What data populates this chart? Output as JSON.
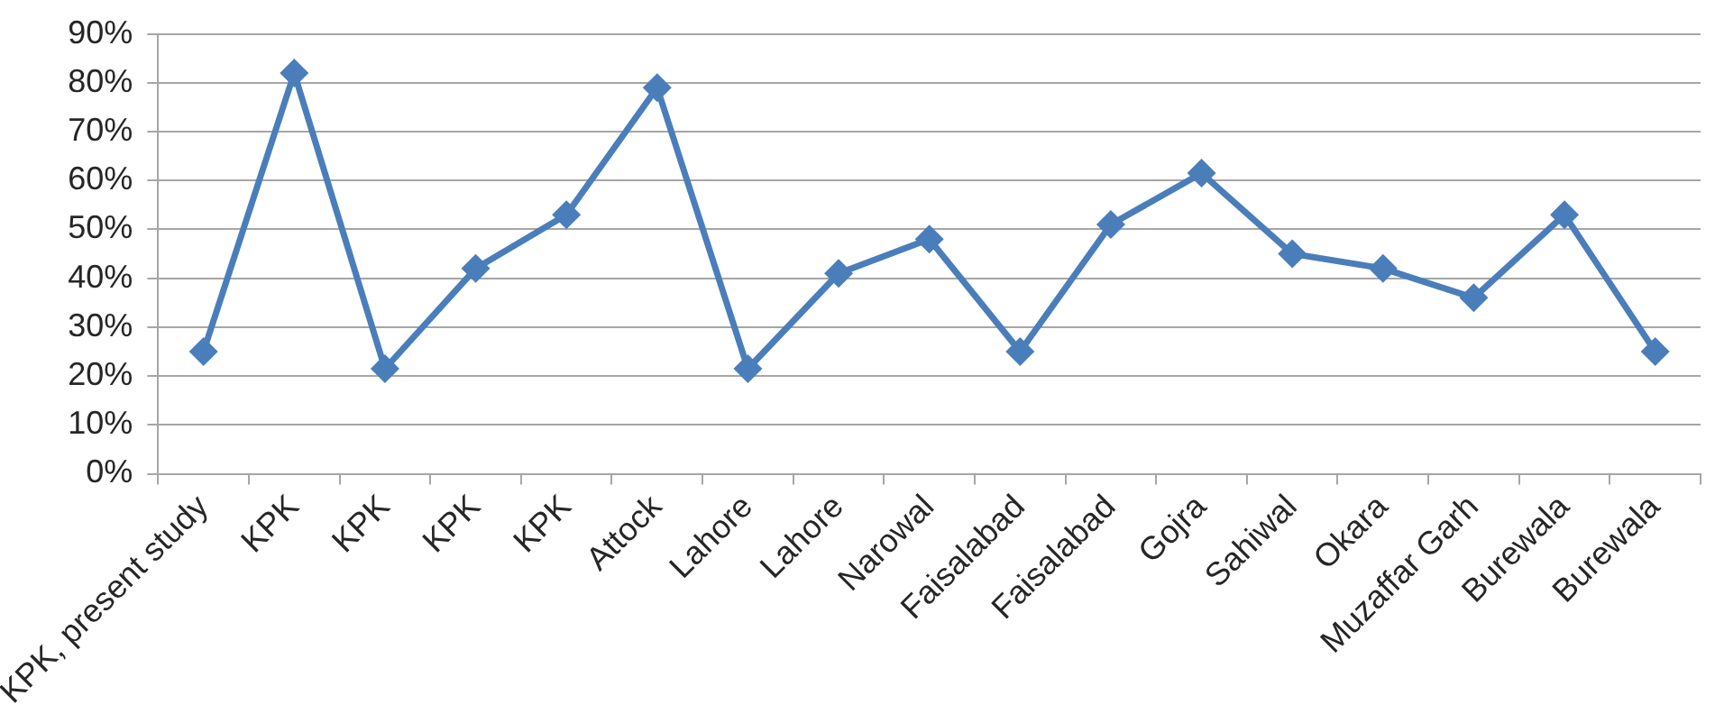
{
  "chart_data": {
    "type": "line",
    "categories": [
      "KPK, present study",
      "KPK",
      "KPK",
      "KPK",
      "KPK",
      "Attock",
      "Lahore",
      "Lahore",
      "Narowal",
      "Faisalabad",
      "Faisalabad",
      "Gojra",
      "Sahiwal",
      "Okara",
      "Muzaffar Garh",
      "Burewala",
      "Burewala"
    ],
    "series": [
      {
        "color": "#4a7ebb",
        "values": [
          25,
          82,
          21.5,
          42,
          53,
          79,
          21.5,
          41,
          48,
          25,
          51,
          61.5,
          45,
          42,
          36,
          53,
          25
        ]
      }
    ],
    "ylim": [
      0,
      90
    ],
    "yticks": [
      {
        "value": 0,
        "label": "0%"
      },
      {
        "value": 10,
        "label": "10%"
      },
      {
        "value": 20,
        "label": "20%"
      },
      {
        "value": 30,
        "label": "30%"
      },
      {
        "value": 40,
        "label": "40%"
      },
      {
        "value": 50,
        "label": "50%"
      },
      {
        "value": 60,
        "label": "60%"
      },
      {
        "value": 70,
        "label": "70%"
      },
      {
        "value": 80,
        "label": "80%"
      },
      {
        "value": 90,
        "label": "90%"
      }
    ],
    "grid": "y",
    "marker": "diamond",
    "line_style": "solid"
  }
}
